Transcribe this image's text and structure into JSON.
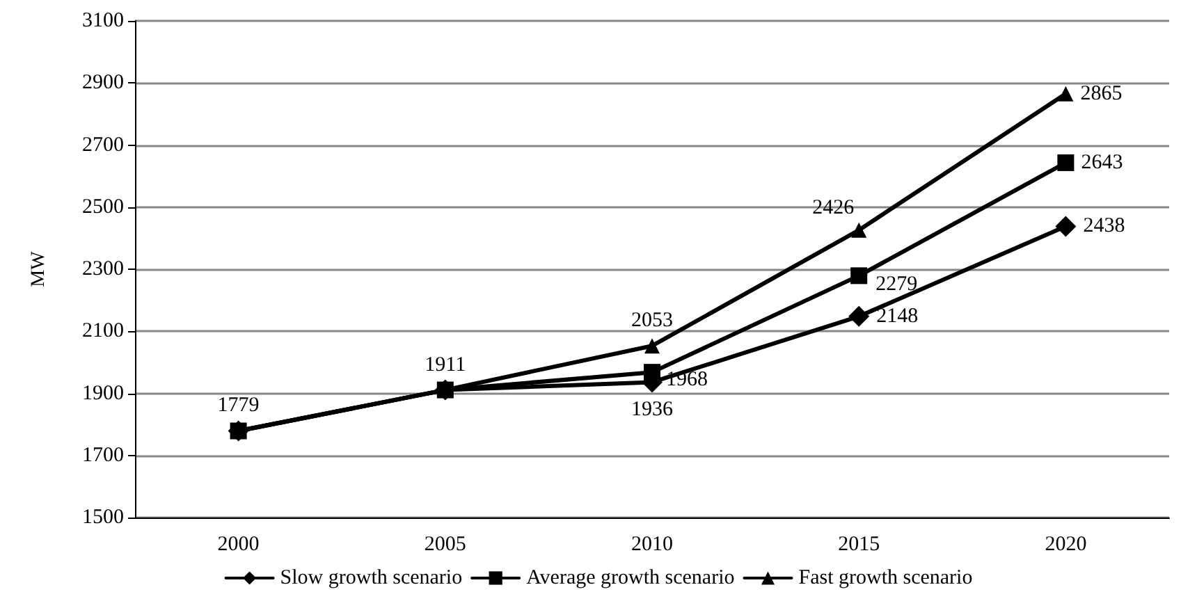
{
  "chart_data": {
    "type": "line",
    "ylabel": "MW",
    "categories": [
      "2000",
      "2005",
      "2010",
      "2015",
      "2020"
    ],
    "series": [
      {
        "name": "Slow growth scenario",
        "color": "#000000",
        "marker": "diamond",
        "values": [
          1779,
          1911,
          1936,
          2148,
          2438
        ],
        "value_labels": [
          null,
          null,
          "1936",
          "2148",
          "2438"
        ]
      },
      {
        "name": "Average growth scenario",
        "color": "#000000",
        "marker": "square",
        "values": [
          1779,
          1911,
          1968,
          2279,
          2643
        ],
        "value_labels": [
          null,
          null,
          "1968",
          "2279",
          "2643"
        ]
      },
      {
        "name": "Fast growth scenario",
        "color": "#000000",
        "marker": "triangle",
        "values": [
          1779,
          1911,
          2053,
          2426,
          2865
        ],
        "value_labels": [
          "1779",
          "1911",
          "2053",
          "2426",
          "2865"
        ]
      }
    ],
    "ylim": [
      1500,
      3100
    ],
    "yticks": [
      1500,
      1700,
      1900,
      2100,
      2300,
      2500,
      2700,
      2900,
      3100
    ],
    "grid": "y",
    "legend": "bottom",
    "line_style": "solid"
  }
}
